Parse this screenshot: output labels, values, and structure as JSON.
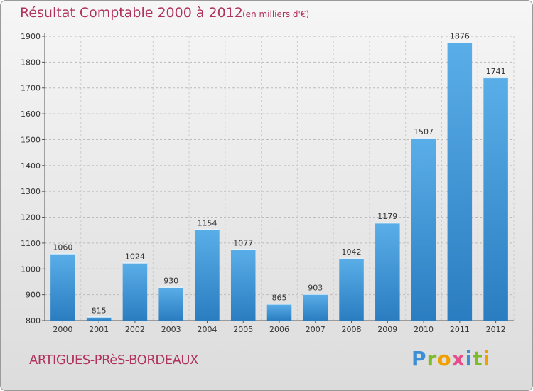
{
  "header": {
    "title": "Résultat Comptable 2000 à 2012",
    "subtitle": "(en milliers d'€)"
  },
  "footer": {
    "commune": "ARTIGUES-PRèS-BORDEAUX",
    "brand_letters": [
      {
        "char": "P",
        "color": "#3a8fd6"
      },
      {
        "char": "r",
        "color": "#7dbb2a"
      },
      {
        "char": "o",
        "color": "#f0a000"
      },
      {
        "char": "x",
        "color": "#e84c8a"
      },
      {
        "char": "i",
        "color": "#3a8fd6"
      },
      {
        "char": "t",
        "color": "#7dbb2a"
      },
      {
        "char": "i",
        "color": "#f0a000"
      }
    ]
  },
  "colors": {
    "accent": "#b0325e",
    "bar_top": "#5aaee8",
    "bar_bottom": "#2a7dc0"
  },
  "chart_data": {
    "type": "bar",
    "title": "Résultat Comptable 2000 à 2012",
    "subtitle": "(en milliers d'€)",
    "xlabel": "",
    "ylabel": "",
    "categories": [
      "2000",
      "2001",
      "2002",
      "2003",
      "2004",
      "2005",
      "2006",
      "2007",
      "2008",
      "2009",
      "2010",
      "2011",
      "2012"
    ],
    "values": [
      1060,
      815,
      1024,
      930,
      1154,
      1077,
      865,
      903,
      1042,
      1179,
      1507,
      1876,
      1741
    ],
    "ylim": [
      800,
      1900
    ],
    "yticks": [
      800,
      900,
      1000,
      1100,
      1200,
      1300,
      1400,
      1500,
      1600,
      1700,
      1800,
      1900
    ],
    "grid": true
  }
}
